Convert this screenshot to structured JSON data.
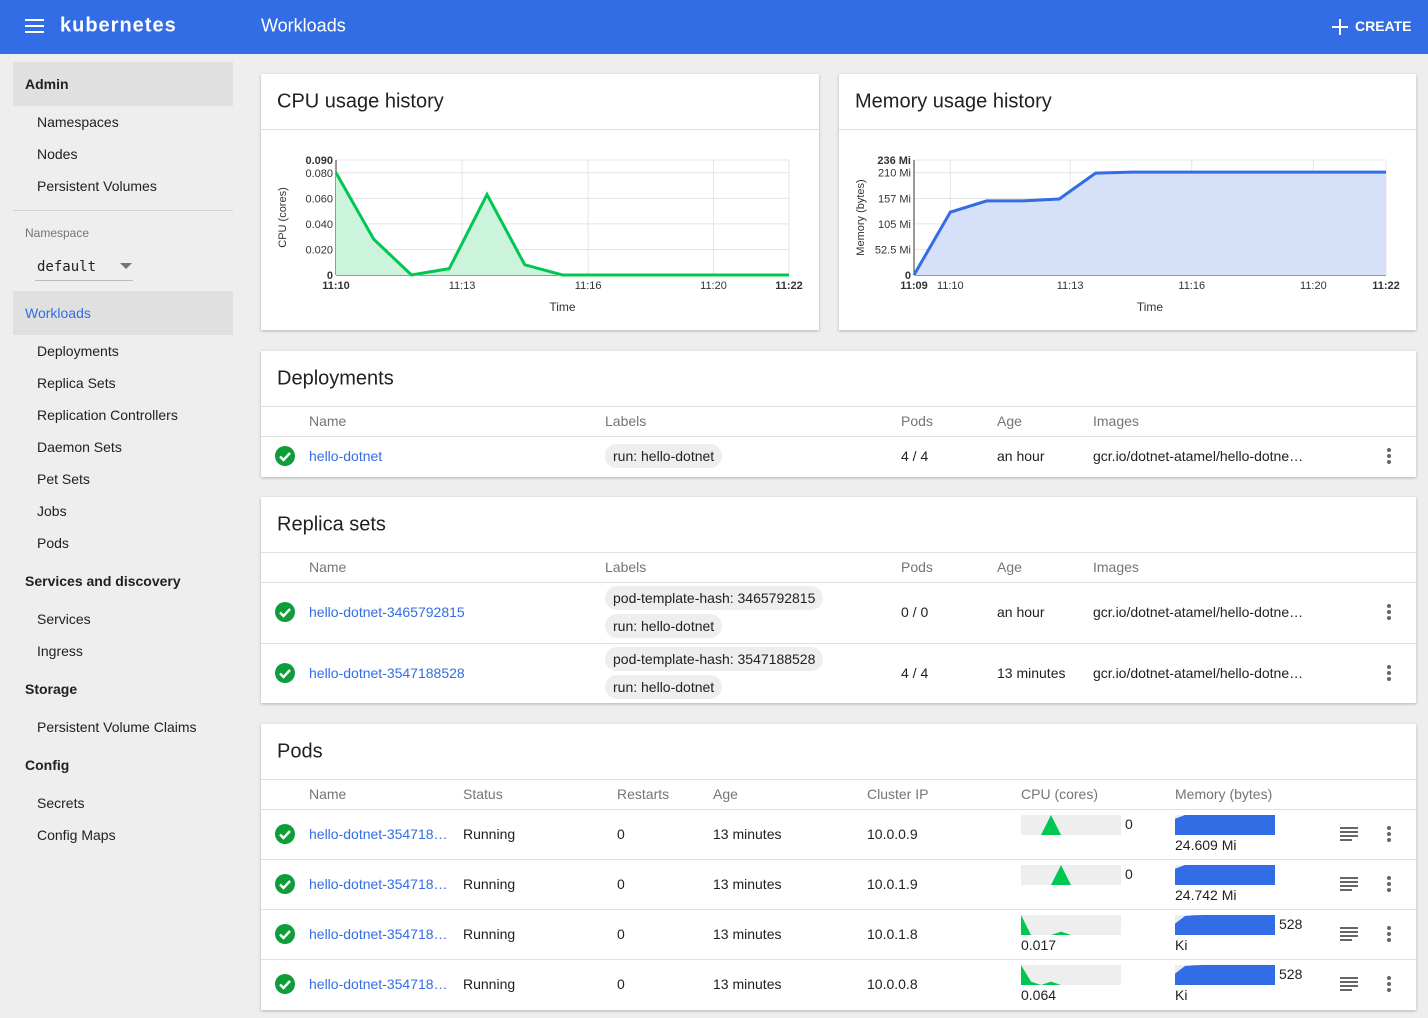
{
  "header": {
    "brand": "kubernetes",
    "title": "Workloads",
    "action": "CREATE"
  },
  "sidebar": {
    "admin": {
      "title": "Admin",
      "items": [
        "Namespaces",
        "Nodes",
        "Persistent Volumes"
      ]
    },
    "namespace": {
      "label": "Namespace",
      "value": "default"
    },
    "groups": [
      {
        "title": "Workloads",
        "active": true,
        "items": [
          "Deployments",
          "Replica Sets",
          "Replication Controllers",
          "Daemon Sets",
          "Pet Sets",
          "Jobs",
          "Pods"
        ]
      },
      {
        "title": "Services and discovery",
        "items": [
          "Services",
          "Ingress"
        ]
      },
      {
        "title": "Storage",
        "items": [
          "Persistent Volume Claims"
        ]
      },
      {
        "title": "Config",
        "items": [
          "Secrets",
          "Config Maps"
        ]
      }
    ]
  },
  "chart_data": [
    {
      "type": "line",
      "title": "CPU usage history",
      "xlabel": "Time",
      "ylabel": "CPU (cores)",
      "grid": true,
      "fill": true,
      "series": [
        {
          "color": "#00c752",
          "fill_color": "#ccf4dc",
          "values": [
            0.08,
            0.028,
            0,
            0.005,
            0.063,
            0.008,
            0,
            0,
            0,
            0,
            0,
            0,
            0
          ]
        }
      ],
      "xlim": [
        0,
        12
      ],
      "xticks": [
        {
          "value": 0,
          "label": "11:10"
        },
        {
          "value": 3.34,
          "label": "11:13"
        },
        {
          "value": 6.68,
          "label": "11:16"
        },
        {
          "value": 10,
          "label": "11:20"
        },
        {
          "value": 12,
          "label": "11:22"
        }
      ],
      "ylim": [
        0,
        0.09
      ],
      "yticks": [
        0,
        {
          "value": 0.02,
          "label": "0.020"
        },
        {
          "value": 0.04,
          "label": "0.040"
        },
        {
          "value": 0.06,
          "label": "0.060"
        },
        {
          "value": 0.08,
          "label": "0.080"
        },
        {
          "value": 0.09,
          "label": "0.090"
        }
      ]
    },
    {
      "type": "line",
      "title": "Memory usage history",
      "xlabel": "Time",
      "ylabel": "Memory (bytes)",
      "grid": true,
      "fill": true,
      "series": [
        {
          "color": "#326de6",
          "fill_color": "#d6e0f8",
          "values": [
            0,
            129,
            152,
            152,
            156,
            209,
            211,
            211,
            211,
            211,
            211,
            211,
            211,
            211
          ]
        }
      ],
      "xlim": [
        0,
        13
      ],
      "xticks": [
        {
          "value": 0,
          "label": "11:09"
        },
        {
          "value": 1,
          "label": "11:10"
        },
        {
          "value": 4.3,
          "label": "11:13"
        },
        {
          "value": 7.65,
          "label": "11:16"
        },
        {
          "value": 11,
          "label": "11:20"
        },
        {
          "value": 13,
          "label": "11:22"
        }
      ],
      "ylim": [
        0,
        236
      ],
      "yticks": [
        0,
        {
          "value": 52.5,
          "label": "52.5 Mi"
        },
        {
          "value": 105,
          "label": "105 Mi"
        },
        {
          "value": 157,
          "label": "157 Mi"
        },
        {
          "value": 210,
          "label": "210 Mi"
        },
        {
          "value": 236,
          "label": "236 Mi"
        }
      ]
    }
  ],
  "deployments": {
    "title": "Deployments",
    "columns": [
      "Name",
      "Labels",
      "Pods",
      "Age",
      "Images"
    ],
    "rows": [
      {
        "name": "hello-dotnet",
        "labels": [
          "run: hello-dotnet"
        ],
        "pods": "4 / 4",
        "age": "an hour",
        "images": "gcr.io/dotnet-atamel/hello-dotne…"
      }
    ]
  },
  "replica_sets": {
    "title": "Replica sets",
    "columns": [
      "Name",
      "Labels",
      "Pods",
      "Age",
      "Images"
    ],
    "rows": [
      {
        "name": "hello-dotnet-3465792815",
        "labels": [
          "pod-template-hash: 3465792815",
          "run: hello-dotnet"
        ],
        "pods": "0 / 0",
        "age": "an hour",
        "images": "gcr.io/dotnet-atamel/hello-dotne…"
      },
      {
        "name": "hello-dotnet-3547188528",
        "labels": [
          "pod-template-hash: 3547188528",
          "run: hello-dotnet"
        ],
        "pods": "4 / 4",
        "age": "13 minutes",
        "images": "gcr.io/dotnet-atamel/hello-dotne…"
      }
    ]
  },
  "pods": {
    "title": "Pods",
    "columns": [
      "Name",
      "Status",
      "Restarts",
      "Age",
      "Cluster IP",
      "CPU (cores)",
      "Memory (bytes)"
    ],
    "rows": [
      {
        "name": "hello-dotnet-354718…",
        "status": "Running",
        "restarts": 0,
        "age": "13 minutes",
        "cluster_ip": "10.0.0.9",
        "cpu": 0,
        "memory": "24.609 Mi",
        "cpu_history": [
          0,
          0,
          0,
          0.06,
          0,
          0,
          0,
          0,
          0,
          0,
          0
        ],
        "memory_history": [
          20,
          24.6,
          24.6,
          24.6,
          24.6,
          24.6,
          24.6,
          24.6,
          24.6,
          24.6,
          24.6
        ]
      },
      {
        "name": "hello-dotnet-354718…",
        "status": "Running",
        "restarts": 0,
        "age": "13 minutes",
        "cluster_ip": "10.0.1.9",
        "cpu": 0,
        "memory": "24.742 Mi",
        "cpu_history": [
          0,
          0,
          0,
          0,
          0.06,
          0,
          0,
          0,
          0,
          0,
          0
        ],
        "memory_history": [
          20,
          24.7,
          24.7,
          24.7,
          24.7,
          24.7,
          24.7,
          24.7,
          24.7,
          24.7,
          24.7
        ]
      },
      {
        "name": "hello-dotnet-354718…",
        "status": "Running",
        "restarts": 0,
        "age": "13 minutes",
        "cluster_ip": "10.0.1.8",
        "cpu": 0.017,
        "memory": "528 Ki",
        "cpu_history": [
          0.06,
          0,
          0,
          0,
          0.01,
          0,
          0,
          0,
          0,
          0,
          0
        ],
        "memory_history": [
          300,
          500,
          520,
          528,
          528,
          528,
          528,
          528,
          528,
          528,
          528
        ]
      },
      {
        "name": "hello-dotnet-354718…",
        "status": "Running",
        "restarts": 0,
        "age": "13 minutes",
        "cluster_ip": "10.0.0.8",
        "cpu": 0.064,
        "memory": "528 Ki",
        "cpu_history": [
          0.06,
          0.01,
          0,
          0.01,
          0,
          0,
          0,
          0,
          0,
          0,
          0
        ],
        "memory_history": [
          300,
          500,
          520,
          528,
          528,
          528,
          528,
          528,
          528,
          528,
          528
        ]
      }
    ]
  }
}
